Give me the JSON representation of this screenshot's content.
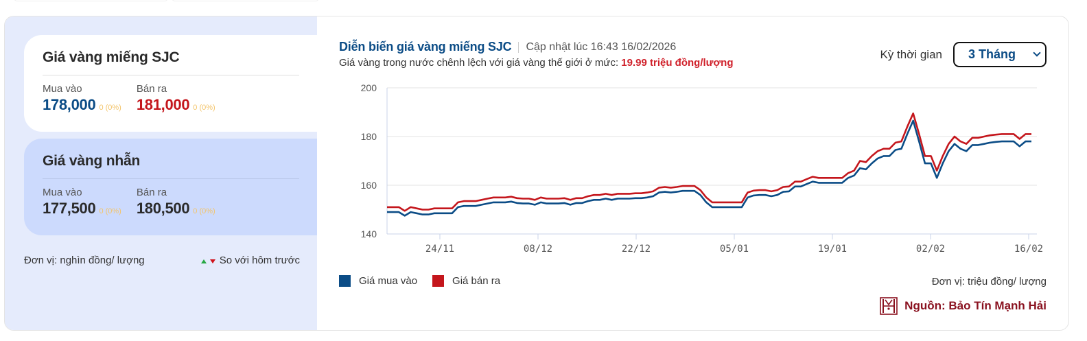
{
  "left_panel": {
    "sjc": {
      "title": "Giá vàng miếng SJC",
      "buy_label": "Mua vào",
      "buy_value": "178,000",
      "buy_change": "0 (0%)",
      "sell_label": "Bán ra",
      "sell_value": "181,000",
      "sell_change": "0 (0%)"
    },
    "ring": {
      "title": "Giá vàng nhẫn",
      "buy_label": "Mua vào",
      "buy_value": "177,500",
      "buy_change": "0 (0%)",
      "sell_label": "Bán ra",
      "sell_value": "180,500",
      "sell_change": "0 (0%)"
    },
    "unit": "Đơn vị: nghìn đồng/ lượng",
    "compare_label": "So với hôm trước"
  },
  "chart_panel": {
    "title": "Diễn biến giá vàng miếng SJC",
    "updated": "Cập nhật lúc 16:43 16/02/2026",
    "subtitle_prefix": "Giá vàng trong nước chênh lệch với giá vàng thế giới ở mức:",
    "subtitle_value": "19.99 triệu đồng/lượng",
    "period_label": "Kỳ thời gian",
    "period_value": "3 Tháng",
    "unit": "Đơn vị: triệu đồng/ lượng",
    "source": "Nguồn: Bảo Tín Mạnh Hải"
  },
  "colors": {
    "buy": "#0b4c86",
    "sell": "#c4161c",
    "up": "#27a844",
    "down": "#d0121b",
    "change": "#f3c46a"
  },
  "chart_data": {
    "type": "line",
    "title": "Diễn biến giá vàng miếng SJC",
    "xlabel": "",
    "ylabel": "triệu đồng/ lượng",
    "ylim": [
      140,
      200
    ],
    "yticks": [
      140,
      160,
      180,
      200
    ],
    "xticks": [
      "24/11",
      "08/12",
      "22/12",
      "05/01",
      "19/01",
      "02/02",
      "16/02"
    ],
    "grid": true,
    "legend_position": "bottom-left",
    "x_start": "16/11",
    "x_end": "16/02",
    "series": [
      {
        "name": "Giá mua vào",
        "color": "#0b4c86",
        "values": [
          149,
          149,
          149,
          147.5,
          149,
          148.5,
          148,
          148,
          148.5,
          148.5,
          148.5,
          148.5,
          151,
          151.5,
          151.5,
          151.5,
          152,
          152.5,
          153,
          153,
          153,
          153.3,
          152.7,
          152.5,
          152.5,
          152,
          153,
          152.5,
          152.5,
          152.5,
          152.7,
          152,
          152.7,
          152.7,
          153.5,
          154,
          154,
          154.5,
          154,
          154.5,
          154.5,
          154.5,
          154.7,
          154.7,
          155,
          155.5,
          157,
          157.3,
          157,
          157.3,
          157.7,
          157.7,
          157.7,
          156,
          153,
          151,
          151,
          151,
          151,
          151,
          151,
          155,
          155.8,
          156,
          156,
          155.5,
          156,
          157.3,
          157.5,
          159.5,
          159.5,
          160.5,
          161.5,
          161,
          161,
          161,
          161,
          161,
          163,
          164,
          167,
          166.5,
          169,
          171,
          172,
          172,
          174.5,
          175,
          181,
          186.5,
          178,
          169,
          169,
          163,
          169,
          174,
          177,
          175,
          174,
          176.5,
          176.5,
          177,
          177.5,
          177.8,
          178,
          178,
          178,
          176,
          178,
          178
        ]
      },
      {
        "name": "Giá bán ra",
        "color": "#c4161c",
        "values": [
          151,
          151,
          151,
          149.5,
          151,
          150.5,
          150,
          150,
          150.5,
          150.5,
          150.5,
          150.5,
          153,
          153.5,
          153.5,
          153.5,
          154,
          154.5,
          155,
          155,
          155,
          155.3,
          154.7,
          154.5,
          154.5,
          154,
          155,
          154.5,
          154.5,
          154.5,
          154.7,
          154,
          154.7,
          154.7,
          155.5,
          156,
          156,
          156.5,
          156,
          156.5,
          156.5,
          156.5,
          156.7,
          156.7,
          157,
          157.5,
          159,
          159.3,
          159,
          159.3,
          159.7,
          159.7,
          159.7,
          158,
          155,
          153,
          153,
          153,
          153,
          153,
          153,
          157,
          157.8,
          158,
          158,
          157.5,
          158,
          159.3,
          159.5,
          161.5,
          161.5,
          162.5,
          163.5,
          163,
          163,
          163,
          163,
          163,
          165,
          166,
          170,
          169.5,
          172,
          174,
          175,
          175,
          177.5,
          178,
          184,
          189.5,
          181,
          172,
          172,
          166,
          172,
          177,
          180,
          178,
          177,
          179.5,
          179.5,
          180,
          180.5,
          180.8,
          181,
          181,
          181,
          179,
          181,
          181
        ]
      }
    ]
  }
}
